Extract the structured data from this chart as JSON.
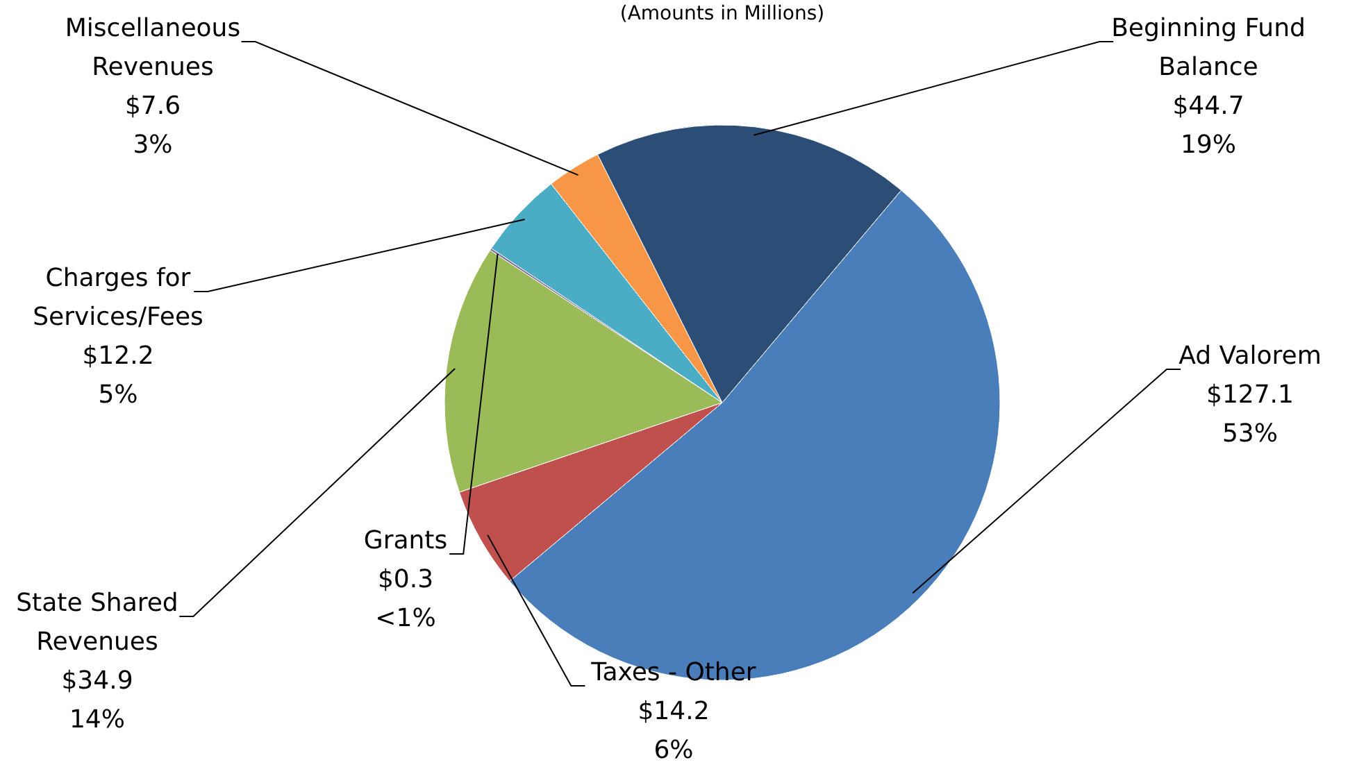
{
  "chart_data": {
    "type": "pie",
    "title": "(Amounts in Millions)",
    "categories": [
      "Ad Valorem",
      "Taxes - Other",
      "State Shared Revenues",
      "Grants",
      "Charges for Services/Fees",
      "Miscellaneous Revenues",
      "Beginning Fund Balance"
    ],
    "values": [
      127.1,
      14.2,
      34.9,
      0.3,
      12.2,
      7.6,
      44.7
    ],
    "colors": [
      "#4a7ebb",
      "#c0504d",
      "#9bbb59",
      "#8064a2",
      "#4bacc6",
      "#f79646",
      "#2c4d75"
    ],
    "value_labels": [
      "$127.1\n53%",
      "$14.2\n6%",
      "$34.9\n14%",
      "$0.3\n<1%",
      "$12.2\n5%",
      "$7.6\n3%",
      "$44.7\n19%"
    ]
  }
}
